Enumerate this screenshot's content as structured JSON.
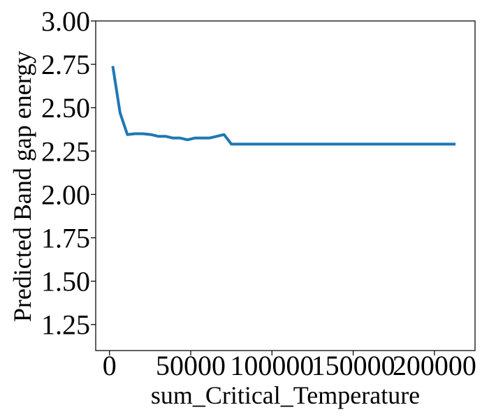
{
  "chart_data": {
    "type": "line",
    "title": "",
    "xlabel": "sum_Critical_Temperature",
    "ylabel": "Predicted Band gap energy",
    "xlim": [
      -8500,
      225000
    ],
    "ylim": [
      1.1,
      3.0
    ],
    "x_ticks": [
      0,
      50000,
      100000,
      150000,
      200000
    ],
    "y_ticks": [
      1.25,
      1.5,
      1.75,
      2.0,
      2.25,
      2.5,
      2.75,
      3.0
    ],
    "x_tick_labels": [
      "0",
      "50000",
      "100000",
      "150000",
      "200000"
    ],
    "y_tick_labels": [
      "1.25",
      "1.50",
      "1.75",
      "2.00",
      "2.25",
      "2.50",
      "2.75",
      "3.00"
    ],
    "grid": false,
    "series": [
      {
        "color": "#1f77b4",
        "x": [
          2000,
          6500,
          11000,
          15500,
          20500,
          25500,
          30000,
          34500,
          39000,
          43500,
          48000,
          52500,
          57000,
          61500,
          66000,
          70500,
          75000,
          80000,
          120000,
          170000,
          213000
        ],
        "y": [
          2.74,
          2.47,
          2.345,
          2.35,
          2.35,
          2.345,
          2.335,
          2.335,
          2.325,
          2.325,
          2.315,
          2.325,
          2.325,
          2.325,
          2.335,
          2.345,
          2.29,
          2.29,
          2.29,
          2.29,
          2.29
        ]
      }
    ]
  }
}
